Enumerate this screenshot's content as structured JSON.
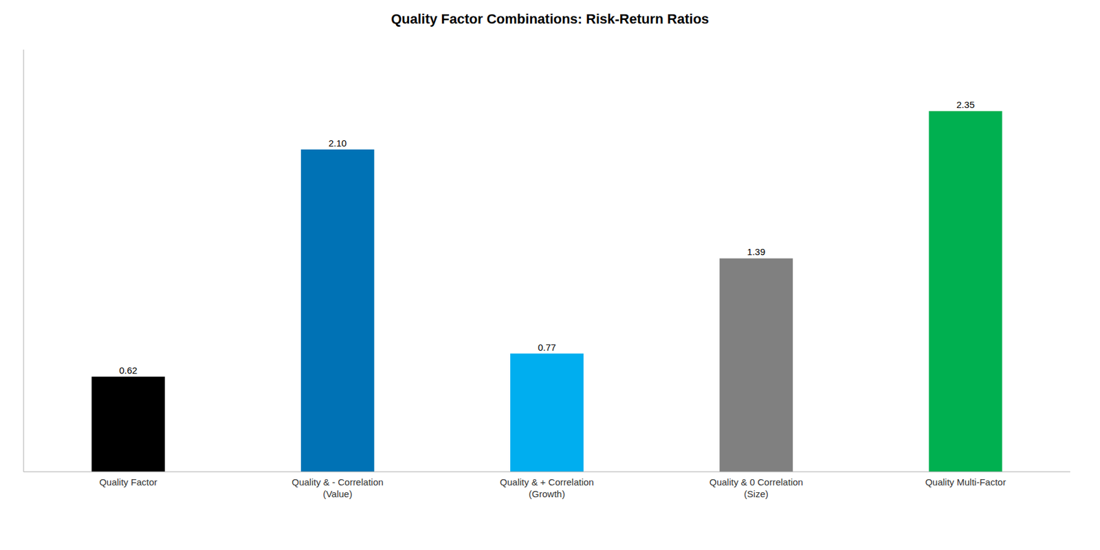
{
  "chart_data": {
    "type": "bar",
    "title": "Quality Factor Combinations: Risk-Return Ratios",
    "categories": [
      "Quality Factor",
      "Quality & - Correlation\n(Value)",
      "Quality & + Correlation\n(Growth)",
      "Quality & 0 Correlation\n(Size)",
      "Quality Multi-Factor"
    ],
    "values": [
      0.62,
      2.1,
      0.77,
      1.39,
      2.35
    ],
    "value_labels": [
      "0.62",
      "2.10",
      "0.77",
      "1.39",
      "2.35"
    ],
    "colors": [
      "#000000",
      "#0072B5",
      "#00AEEF",
      "#808080",
      "#00B050"
    ],
    "ylim": [
      0,
      2.75
    ],
    "data_labels": true,
    "tick_labels": "x"
  }
}
